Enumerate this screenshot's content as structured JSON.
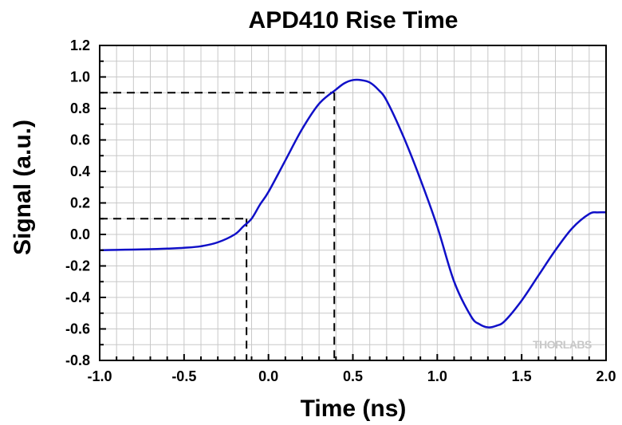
{
  "chart_data": {
    "type": "line",
    "title": "APD410 Rise Time",
    "xlabel": "Time (ns)",
    "ylabel": "Signal (a.u.)",
    "xlim": [
      -1.0,
      2.0
    ],
    "ylim": [
      -0.8,
      1.2
    ],
    "x_ticks": [
      "-1.0",
      "-0.5",
      "0.0",
      "0.5",
      "1.0",
      "1.5",
      "2.0"
    ],
    "y_ticks": [
      "-0.8",
      "-0.6",
      "-0.4",
      "-0.2",
      "0.0",
      "0.2",
      "0.4",
      "0.6",
      "0.8",
      "1.0",
      "1.2"
    ],
    "grid": true,
    "series_color": "#1010c8",
    "series": [
      {
        "x": [
          -1.0,
          -0.9,
          -0.8,
          -0.7,
          -0.6,
          -0.5,
          -0.4,
          -0.3,
          -0.2,
          -0.15,
          -0.1,
          -0.05,
          0.0,
          0.1,
          0.2,
          0.3,
          0.4,
          0.45,
          0.5,
          0.55,
          0.6,
          0.65,
          0.7,
          0.8,
          0.9,
          1.0,
          1.1,
          1.2,
          1.25,
          1.3,
          1.35,
          1.4,
          1.5,
          1.6,
          1.7,
          1.8,
          1.9,
          1.95,
          2.0
        ],
        "y": [
          -0.1,
          -0.098,
          -0.096,
          -0.094,
          -0.09,
          -0.085,
          -0.075,
          -0.05,
          0.0,
          0.05,
          0.1,
          0.19,
          0.27,
          0.47,
          0.67,
          0.83,
          0.92,
          0.96,
          0.98,
          0.98,
          0.965,
          0.92,
          0.85,
          0.62,
          0.35,
          0.05,
          -0.3,
          -0.52,
          -0.57,
          -0.59,
          -0.58,
          -0.55,
          -0.42,
          -0.26,
          -0.1,
          0.04,
          0.13,
          0.14,
          0.14
        ]
      }
    ],
    "annotations": [
      {
        "type": "dashed-guide",
        "level": 0.1,
        "x_at": -0.13
      },
      {
        "type": "dashed-guide",
        "level": 0.9,
        "x_at": 0.39
      }
    ],
    "watermark": "THORLABS"
  }
}
